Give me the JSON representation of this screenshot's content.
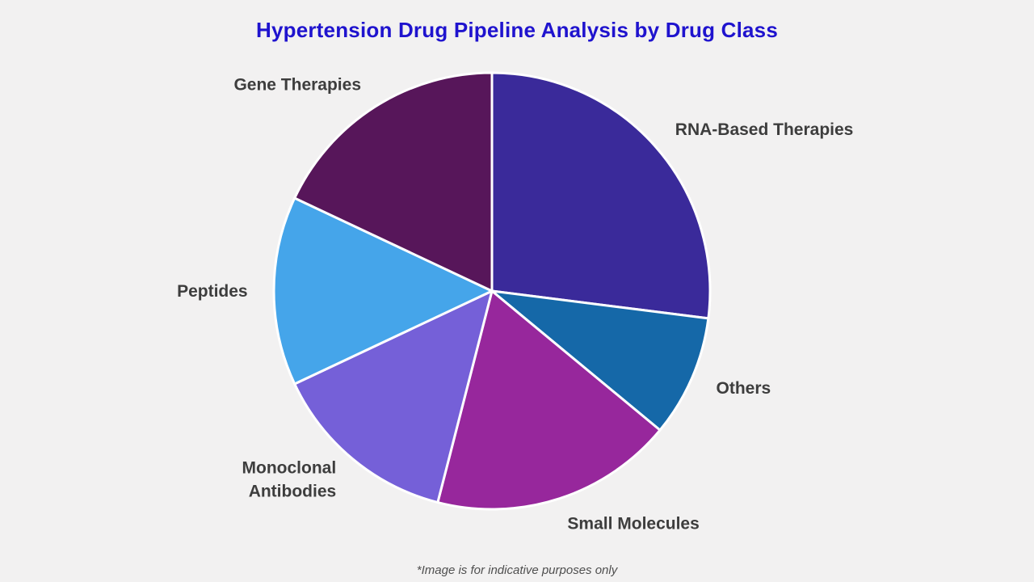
{
  "title": "Hypertension Drug Pipeline Analysis by Drug Class",
  "footnote": "*Image is for indicative purposes only",
  "colors": {
    "background": "#f2f1f1",
    "title": "#1f13ce",
    "label": "#3d3d3d",
    "footnote": "#4f4f4f",
    "slice_stroke": "#ffffff"
  },
  "chart_data": {
    "type": "pie",
    "title": "Hypertension Drug Pipeline Analysis by Drug Class",
    "footnote": "*Image is for indicative purposes only",
    "legend": "none",
    "labels_position": "outside",
    "direction": "clockwise",
    "start_angle_deg": 0,
    "units": "percent (estimated from arc angles)",
    "slices": [
      {
        "label": "RNA-Based Therapies",
        "value_pct": 27,
        "color": "#3a2a9a"
      },
      {
        "label": "Others",
        "value_pct": 9,
        "color": "#1568a8"
      },
      {
        "label": "Small Molecules",
        "value_pct": 18,
        "color": "#97279c"
      },
      {
        "label": "Monoclonal Antibodies",
        "value_pct": 14,
        "color": "#7560d8",
        "label_lines": [
          "Monoclonal",
          "Antibodies"
        ]
      },
      {
        "label": "Peptides",
        "value_pct": 14,
        "color": "#45a5ea"
      },
      {
        "label": "Gene Therapies",
        "value_pct": 18,
        "color": "#57165a"
      }
    ]
  }
}
